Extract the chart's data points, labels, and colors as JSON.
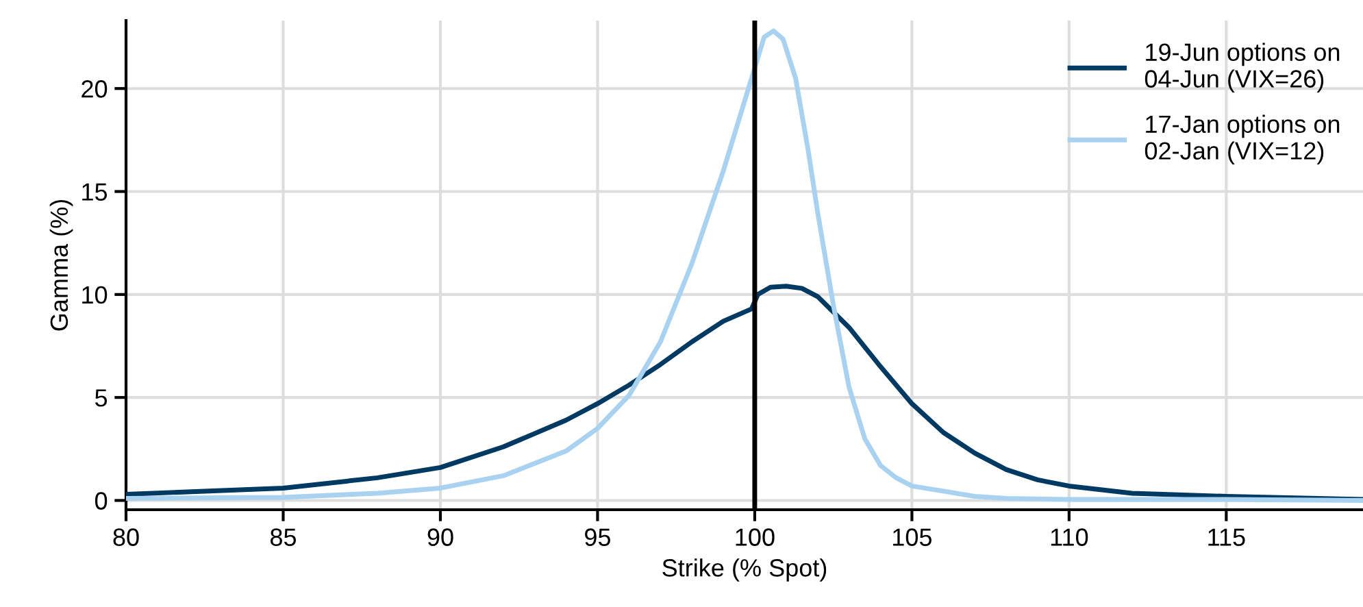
{
  "chart_data": {
    "type": "line",
    "xlabel": "Strike (% Spot)",
    "ylabel": "Gamma (%)",
    "xlim": [
      80,
      119.35
    ],
    "ylim": [
      -0.45,
      23.3
    ],
    "xticks": [
      80,
      85,
      90,
      95,
      100,
      105,
      110,
      115
    ],
    "yticks": [
      0,
      5,
      10,
      15,
      20
    ],
    "grid": true,
    "legend": "top right",
    "line_style": "solid",
    "marker": "none",
    "ref_lines": [
      {
        "axis": "x",
        "value": 100,
        "color": "#000000"
      }
    ],
    "series": [
      {
        "name": "19-Jun options on\n04-Jun (VIX=26)",
        "color": "#003a63",
        "x": [
          80,
          85,
          88,
          90,
          92,
          94,
          95,
          96,
          97,
          98,
          99,
          99.9,
          100.1,
          100.5,
          101,
          101.5,
          102,
          103,
          104,
          105,
          106,
          107,
          108,
          109,
          110,
          112,
          115,
          119.35
        ],
        "values": [
          0.3,
          0.6,
          1.1,
          1.6,
          2.6,
          3.9,
          4.7,
          5.6,
          6.6,
          7.7,
          8.7,
          9.3,
          10.0,
          10.35,
          10.4,
          10.3,
          9.9,
          8.4,
          6.5,
          4.7,
          3.3,
          2.3,
          1.5,
          1.0,
          0.7,
          0.35,
          0.2,
          0.05
        ]
      },
      {
        "name": "17-Jan options on\n02-Jan (VIX=12)",
        "color": "#a8d2f0",
        "x": [
          80,
          85,
          88,
          90,
          92,
          94,
          95,
          96,
          97,
          98,
          99,
          99.5,
          100,
          100.3,
          100.6,
          100.9,
          101.3,
          101.7,
          102,
          102.5,
          103,
          103.5,
          104,
          104.5,
          105,
          106,
          107,
          108,
          110,
          115,
          119.35
        ],
        "values": [
          0.1,
          0.15,
          0.35,
          0.6,
          1.2,
          2.4,
          3.5,
          5.1,
          7.7,
          11.5,
          16.0,
          18.5,
          21.0,
          22.5,
          22.8,
          22.4,
          20.5,
          17,
          14,
          9.5,
          5.5,
          3.0,
          1.7,
          1.1,
          0.7,
          0.45,
          0.2,
          0.1,
          0.05,
          0.05,
          0.0
        ]
      }
    ]
  }
}
